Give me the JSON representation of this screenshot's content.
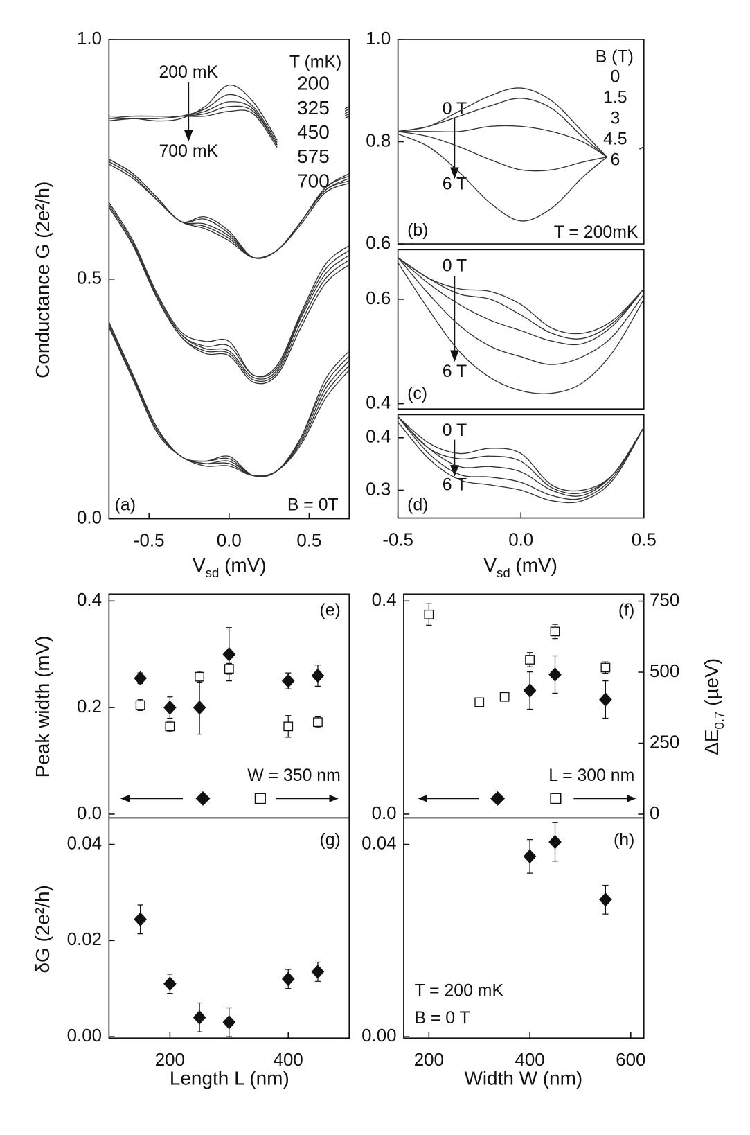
{
  "chart_data": [
    {
      "type": "line",
      "xlim": [
        -0.75,
        0.75
      ],
      "xticks": [
        -0.5,
        {
          "value": 0,
          "label": "0.0"
        },
        0.5
      ],
      "ylim": [
        0,
        1
      ],
      "yticks": [
        {
          "value": 0,
          "label": "0.0"
        },
        0.5,
        {
          "value": 1,
          "label": "1.0"
        }
      ],
      "xlabel": [
        {
          "text": "V"
        },
        {
          "text": "sd",
          "sub": true
        },
        {
          "text": "  (mV)"
        }
      ],
      "ylabel": [
        {
          "text": "Conductance G  (2e²/h)"
        }
      ],
      "legend_title": "T (mK)",
      "legend": [
        "200",
        "325",
        "450",
        "575",
        "700"
      ],
      "annotations": [
        "200 mK",
        "700 mK",
        "(a)",
        "B = 0T"
      ],
      "x": [
        -0.75,
        -0.6,
        -0.45,
        -0.3,
        -0.15,
        0,
        0.15,
        0.3,
        0.45,
        0.6,
        0.75
      ],
      "groups": [
        {
          "series": [
            {
              "values": [
                0.83,
                0.835,
                0.83,
                0.835,
                0.86,
                0.905,
                0.87,
                0.79,
                null,
                null,
                0.86
              ]
            },
            {
              "values": [
                0.83,
                0.835,
                0.835,
                0.84,
                0.855,
                0.885,
                0.86,
                0.785,
                null,
                null,
                0.855
              ]
            },
            {
              "values": [
                0.835,
                0.835,
                0.835,
                0.84,
                0.85,
                0.87,
                0.855,
                0.78,
                null,
                null,
                0.85
              ]
            },
            {
              "values": [
                0.835,
                0.84,
                0.84,
                0.84,
                0.845,
                0.86,
                0.85,
                0.78,
                null,
                null,
                0.845
              ]
            },
            {
              "values": [
                0.84,
                0.84,
                0.84,
                0.84,
                0.84,
                0.85,
                0.845,
                0.775,
                null,
                null,
                0.84
              ]
            }
          ]
        },
        {
          "series": [
            {
              "values": [
                0.75,
                0.72,
                0.67,
                0.62,
                0.63,
                0.6,
                0.545,
                0.56,
                0.62,
                0.69,
                0.72
              ]
            },
            {
              "values": [
                0.75,
                0.72,
                0.67,
                0.62,
                0.625,
                0.595,
                0.545,
                0.56,
                0.62,
                0.69,
                0.715
              ]
            },
            {
              "values": [
                0.745,
                0.715,
                0.665,
                0.62,
                0.615,
                0.59,
                0.545,
                0.56,
                0.62,
                0.685,
                0.71
              ]
            },
            {
              "values": [
                0.745,
                0.715,
                0.665,
                0.62,
                0.61,
                0.585,
                0.545,
                0.56,
                0.62,
                0.685,
                0.705
              ]
            },
            {
              "values": [
                0.74,
                0.71,
                0.665,
                0.62,
                0.605,
                0.58,
                0.545,
                0.56,
                0.615,
                0.68,
                0.7
              ]
            }
          ]
        },
        {
          "series": [
            {
              "values": [
                0.66,
                0.58,
                0.47,
                0.39,
                0.37,
                0.37,
                0.3,
                0.32,
                0.43,
                0.53,
                0.57
              ]
            },
            {
              "values": [
                0.655,
                0.575,
                0.465,
                0.385,
                0.36,
                0.36,
                0.3,
                0.315,
                0.425,
                0.52,
                0.56
              ]
            },
            {
              "values": [
                0.655,
                0.575,
                0.465,
                0.385,
                0.355,
                0.35,
                0.295,
                0.31,
                0.42,
                0.51,
                0.55
              ]
            },
            {
              "values": [
                0.65,
                0.57,
                0.46,
                0.38,
                0.35,
                0.345,
                0.29,
                0.305,
                0.41,
                0.5,
                0.54
              ]
            },
            {
              "values": [
                0.65,
                0.57,
                0.46,
                0.38,
                0.345,
                0.34,
                0.285,
                0.3,
                0.4,
                0.49,
                0.53
              ]
            }
          ]
        },
        {
          "series": [
            {
              "values": [
                0.41,
                0.3,
                0.19,
                0.13,
                0.12,
                0.13,
                0.09,
                0.1,
                0.17,
                0.29,
                0.35
              ]
            },
            {
              "values": [
                0.41,
                0.3,
                0.19,
                0.13,
                0.12,
                0.125,
                0.09,
                0.1,
                0.17,
                0.28,
                0.34
              ]
            },
            {
              "values": [
                0.405,
                0.295,
                0.185,
                0.13,
                0.115,
                0.12,
                0.09,
                0.1,
                0.165,
                0.27,
                0.33
              ]
            },
            {
              "values": [
                0.4,
                0.295,
                0.185,
                0.13,
                0.115,
                0.115,
                0.09,
                0.1,
                0.16,
                0.26,
                0.32
              ]
            },
            {
              "values": [
                0.4,
                0.29,
                0.18,
                0.13,
                0.11,
                0.11,
                0.09,
                0.1,
                0.155,
                0.25,
                0.31
              ]
            }
          ]
        }
      ]
    },
    {
      "type": "line",
      "xlim": [
        -0.5,
        0.5
      ],
      "ylim": [
        0.6,
        1.0
      ],
      "yticks": [
        0.6,
        0.8,
        {
          "value": 1,
          "label": "1.0"
        }
      ],
      "legend_title": "B (T)",
      "annotations": [
        "0 T",
        "6 T",
        "(b)",
        "T = 200mK"
      ],
      "x": [
        -0.5,
        -0.375,
        -0.25,
        -0.125,
        0,
        0.125,
        0.25,
        0.35,
        0.42,
        0.5
      ],
      "series": [
        {
          "name": "0",
          "values": [
            0.82,
            0.83,
            0.86,
            0.89,
            0.905,
            0.88,
            0.82,
            0.77,
            null,
            0.79
          ]
        },
        {
          "name": "1.5",
          "values": [
            0.82,
            0.83,
            0.85,
            0.87,
            0.885,
            0.865,
            0.81,
            0.77,
            null,
            0.79
          ]
        },
        {
          "name": "3",
          "values": [
            0.82,
            0.82,
            0.82,
            0.83,
            0.83,
            0.82,
            0.8,
            0.77,
            null,
            0.79
          ]
        },
        {
          "name": "4.5",
          "values": [
            0.82,
            0.81,
            0.79,
            0.765,
            0.745,
            0.745,
            0.76,
            0.77,
            null,
            0.79
          ]
        },
        {
          "name": "6",
          "values": [
            0.815,
            0.79,
            0.74,
            0.68,
            0.645,
            0.67,
            0.73,
            0.77,
            null,
            0.79
          ]
        }
      ]
    },
    {
      "type": "line",
      "xlim": [
        -0.5,
        0.5
      ],
      "ylim": [
        0.39,
        0.695
      ],
      "yticks": [
        0.4,
        0.6
      ],
      "annotations": [
        "0 T",
        "6 T",
        "(c)"
      ],
      "x": [
        -0.5,
        -0.375,
        -0.25,
        -0.125,
        0,
        0.125,
        0.25,
        0.375,
        0.5
      ],
      "series": [
        {
          "values": [
            0.68,
            0.64,
            0.62,
            0.615,
            0.59,
            0.545,
            0.535,
            0.56,
            0.62
          ]
        },
        {
          "values": [
            0.68,
            0.64,
            0.61,
            0.6,
            0.57,
            0.535,
            0.525,
            0.555,
            0.62
          ]
        },
        {
          "values": [
            0.68,
            0.63,
            0.59,
            0.56,
            0.54,
            0.52,
            0.515,
            0.55,
            0.62
          ]
        },
        {
          "values": [
            0.68,
            0.61,
            0.55,
            0.51,
            0.49,
            0.475,
            0.49,
            0.53,
            0.61
          ]
        },
        {
          "values": [
            0.67,
            0.58,
            0.5,
            0.45,
            0.425,
            0.42,
            0.44,
            0.5,
            0.6
          ]
        }
      ]
    },
    {
      "type": "line",
      "xlim": [
        -0.5,
        0.5
      ],
      "xticks": [
        -0.5,
        {
          "value": 0,
          "label": "0.0"
        },
        0.5
      ],
      "ylim": [
        0.247,
        0.444
      ],
      "yticks": [
        0.3,
        0.4
      ],
      "xlabel": [
        {
          "text": "V"
        },
        {
          "text": "sd",
          "sub": true
        },
        {
          "text": "  (mV)"
        }
      ],
      "annotations": [
        "0 T",
        "6 T",
        "(d)"
      ],
      "x": [
        -0.5,
        -0.375,
        -0.25,
        -0.125,
        0,
        0.125,
        0.25,
        0.375,
        0.5
      ],
      "series": [
        {
          "values": [
            0.44,
            0.39,
            0.37,
            0.38,
            0.37,
            0.31,
            0.3,
            0.33,
            0.42
          ]
        },
        {
          "values": [
            0.44,
            0.38,
            0.36,
            0.365,
            0.355,
            0.305,
            0.295,
            0.33,
            0.42
          ]
        },
        {
          "values": [
            0.44,
            0.38,
            0.345,
            0.345,
            0.335,
            0.3,
            0.29,
            0.33,
            0.42
          ]
        },
        {
          "values": [
            0.44,
            0.37,
            0.33,
            0.325,
            0.315,
            0.29,
            0.285,
            0.325,
            0.42
          ]
        },
        {
          "values": [
            0.43,
            0.36,
            0.32,
            0.31,
            0.3,
            0.28,
            0.28,
            0.32,
            0.42
          ]
        }
      ]
    },
    {
      "type": "scatter",
      "xlim": [
        97,
        503
      ],
      "ylim": [
        -0.007,
        0.413
      ],
      "yticks": [
        {
          "value": 0,
          "label": "0.0"
        },
        0.2,
        0.4
      ],
      "y2lim": [
        -13,
        775
      ],
      "ylabel": [
        {
          "text": "Peak width  (mV)"
        }
      ],
      "annotations": [
        "(e)",
        "W = 350 nm"
      ],
      "series": [
        {
          "marker": "diamond",
          "x": [
            150,
            200,
            250,
            300,
            400,
            450
          ],
          "values": [
            0.255,
            0.2,
            0.2,
            0.3,
            0.25,
            0.26
          ],
          "errors": [
            0.01,
            0.02,
            0.05,
            0.05,
            0.015,
            0.02
          ]
        },
        {
          "marker": "square",
          "axis": "y2",
          "x": [
            150,
            200,
            250,
            300,
            400,
            450
          ],
          "values": [
            384,
            309,
            484,
            512,
            309,
            324
          ],
          "errors": [
            19,
            19,
            19,
            19,
            38,
            19
          ]
        }
      ]
    },
    {
      "type": "scatter",
      "xlim": [
        150,
        626
      ],
      "ylim": [
        -0.007,
        0.413
      ],
      "yticks": [
        {
          "value": 0,
          "label": "0.0"
        },
        0.4
      ],
      "y2lim": [
        -13,
        775
      ],
      "y2ticks": [
        0,
        250,
        500,
        750
      ],
      "y2label": [
        {
          "text": "ΔE"
        },
        {
          "text": "0.7",
          "sub": true
        },
        {
          "text": " (µeV)"
        }
      ],
      "annotations": [
        "(f)",
        "L = 300 nm"
      ],
      "series": [
        {
          "marker": "diamond",
          "x": [
            400,
            450,
            550
          ],
          "values": [
            0.232,
            0.262,
            0.215
          ],
          "errors": [
            0.035,
            0.035,
            0.035
          ]
        },
        {
          "marker": "square",
          "axis": "y2",
          "x": [
            200,
            300,
            350,
            400,
            450,
            550
          ],
          "values": [
            703,
            394,
            413,
            544,
            643,
            516
          ],
          "errors": [
            38,
            15,
            15,
            25,
            25,
            20
          ]
        }
      ]
    },
    {
      "type": "scatter",
      "xlim": [
        97,
        503
      ],
      "xticks": [
        200,
        400
      ],
      "ylim": [
        -0.0003,
        0.0455
      ],
      "yticks": [
        {
          "value": 0,
          "label": "0.00"
        },
        0.02,
        0.04
      ],
      "xlabel": [
        {
          "text": "Length L  (nm)"
        }
      ],
      "ylabel": [
        {
          "text": "δG  (2e²/h)"
        }
      ],
      "annotations": [
        "(g)"
      ],
      "series": [
        {
          "marker": "diamond",
          "x": [
            150,
            200,
            250,
            300,
            400,
            450
          ],
          "values": [
            0.0244,
            0.011,
            0.004,
            0.003,
            0.012,
            0.0135
          ],
          "errors": [
            0.003,
            0.002,
            0.003,
            0.003,
            0.002,
            0.002
          ]
        }
      ]
    },
    {
      "type": "scatter",
      "xlim": [
        150,
        626
      ],
      "xticks": [
        200,
        400,
        600
      ],
      "ylim": [
        -0.0003,
        0.0455
      ],
      "yticks": [
        {
          "value": 0,
          "label": "0.00"
        },
        0.04
      ],
      "xlabel": [
        {
          "text": "Width W  (nm)"
        }
      ],
      "annotations": [
        "(h)",
        "T = 200 mK",
        "B = 0 T"
      ],
      "series": [
        {
          "marker": "diamond",
          "x": [
            400,
            450,
            550
          ],
          "values": [
            0.0375,
            0.0405,
            0.0285
          ],
          "errors": [
            0.0035,
            0.004,
            0.003
          ]
        }
      ]
    }
  ]
}
